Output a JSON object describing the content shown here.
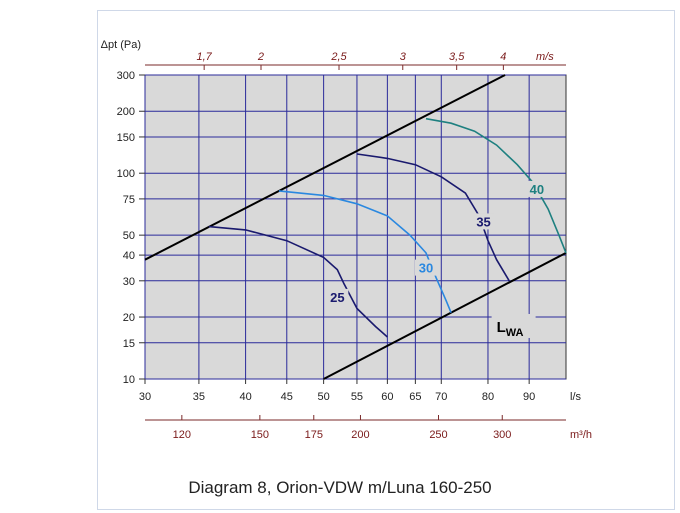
{
  "caption": "Diagram 8, Orion-VDW m/Luna 160-250",
  "chart_data": {
    "type": "line",
    "y_axis": {
      "label": "Δpt (Pa)",
      "scale": "log",
      "range": [
        10,
        300
      ],
      "ticks": [
        10,
        15,
        20,
        30,
        40,
        50,
        75,
        100,
        150,
        200,
        300
      ]
    },
    "x_axis_bottom": {
      "unit": "l/s",
      "scale": "log",
      "range": [
        30,
        100
      ],
      "ticks": [
        30,
        35,
        40,
        45,
        50,
        55,
        60,
        65,
        70,
        80,
        90
      ]
    },
    "x_axis_top": {
      "unit": "m/s",
      "ticks": [
        "1,7",
        "2",
        "2,5",
        "3",
        "3,5",
        "4"
      ],
      "tick_values": [
        1.7,
        2,
        2.5,
        3,
        3.5,
        4
      ]
    },
    "x_axis_secondary": {
      "unit": "m³/h",
      "ticks": [
        120,
        150,
        175,
        200,
        250,
        300
      ]
    },
    "boundary_lines": [
      {
        "name": "upper",
        "points": [
          [
            30,
            38
          ],
          [
            84,
            300
          ]
        ]
      },
      {
        "name": "lower",
        "points": [
          [
            50,
            10
          ],
          [
            100,
            41
          ]
        ]
      }
    ],
    "lwa_label": "L",
    "lwa_sub": "WA",
    "series": [
      {
        "name": "25",
        "color": "#1a1a6e",
        "label_at": [
          52,
          24.5
        ],
        "points": [
          [
            36,
            55
          ],
          [
            40,
            53
          ],
          [
            45,
            47
          ],
          [
            50,
            39
          ],
          [
            52,
            34
          ],
          [
            53,
            29
          ],
          [
            55,
            22
          ],
          [
            58,
            18
          ],
          [
            60,
            16
          ]
        ]
      },
      {
        "name": "30",
        "color": "#2a88e0",
        "label_at": [
          67,
          34
        ],
        "points": [
          [
            44,
            82
          ],
          [
            50,
            78
          ],
          [
            55,
            71
          ],
          [
            60,
            62
          ],
          [
            64,
            50
          ],
          [
            67,
            41
          ],
          [
            69,
            31
          ],
          [
            71,
            24
          ],
          [
            72,
            21
          ]
        ]
      },
      {
        "name": "35",
        "color": "#1a1a6e",
        "label_at": [
          79,
          57
        ],
        "points": [
          [
            55,
            124
          ],
          [
            60,
            118
          ],
          [
            65,
            110
          ],
          [
            70,
            96
          ],
          [
            75,
            80
          ],
          [
            78,
            62
          ],
          [
            80,
            47
          ],
          [
            82,
            38
          ],
          [
            85,
            30
          ]
        ]
      },
      {
        "name": "40",
        "color": "#1e8080",
        "label_at": [
          92,
          82
        ],
        "points": [
          [
            67,
            184
          ],
          [
            72,
            175
          ],
          [
            77,
            160
          ],
          [
            82,
            137
          ],
          [
            87,
            110
          ],
          [
            91,
            90
          ],
          [
            95,
            67
          ],
          [
            98,
            50
          ],
          [
            100,
            41
          ]
        ]
      }
    ]
  }
}
